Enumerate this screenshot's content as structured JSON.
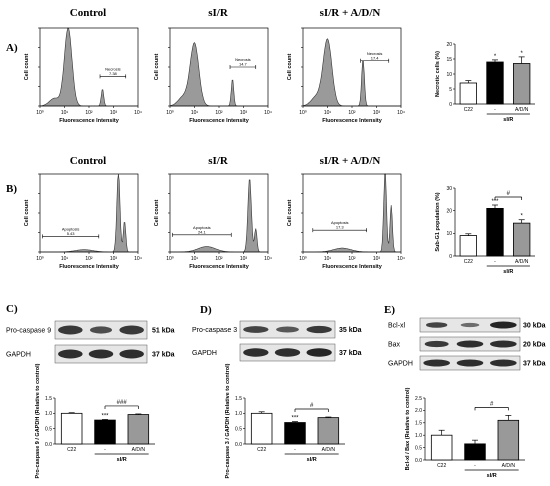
{
  "panels": {
    "A": "A)",
    "B": "B)",
    "C": "C)",
    "D": "D)",
    "E": "E)"
  },
  "column_titles": [
    "Control",
    "sI/R",
    "sI/R + A/D/N"
  ],
  "flow": {
    "ylabel": "Cell count",
    "xlabel": "Fluorescence Intensity",
    "xticks": [
      "10⁰",
      "10¹",
      "10²",
      "10³",
      "10⁴"
    ],
    "A_gate_label": "Necrosis",
    "A_gate_values": [
      "7.38",
      "14.7",
      "17.4"
    ],
    "B_gate_label": "Apoptosis",
    "B_gate_values": [
      "5.43",
      "24.1",
      "17.3"
    ]
  },
  "blots": {
    "C": {
      "rows": [
        {
          "label": "Pro-caspase 9",
          "kda": "51 kDa"
        },
        {
          "label": "GAPDH",
          "kda": "37 kDa"
        }
      ]
    },
    "D": {
      "rows": [
        {
          "label": "Pro-caspase 3",
          "kda": "35 kDa"
        },
        {
          "label": "GAPDH",
          "kda": "37 kDa"
        }
      ]
    },
    "E": {
      "rows": [
        {
          "label": "Bcl-xl",
          "kda": "30 kDa"
        },
        {
          "label": "Bax",
          "kda": "20 kDa"
        },
        {
          "label": "GAPDH",
          "kda": "37 kDa"
        }
      ]
    }
  },
  "chart_data": [
    {
      "id": "A",
      "type": "bar",
      "categories": [
        "C22",
        "-",
        "A/D/N"
      ],
      "group_label": "sI/R",
      "values": [
        7,
        14,
        13.5
      ],
      "errors": [
        0.8,
        0.7,
        2.2
      ],
      "ylabel": "Necrotic cells (%)",
      "ylim": [
        0,
        20
      ],
      "yticks": [
        0,
        5,
        10,
        15,
        20
      ],
      "stars": [
        "",
        "*",
        "*"
      ],
      "bracket": null
    },
    {
      "id": "B",
      "type": "bar",
      "categories": [
        "C22",
        "-",
        "A/D/N"
      ],
      "group_label": "sI/R",
      "values": [
        9,
        21,
        14.5
      ],
      "errors": [
        0.8,
        1.5,
        1.5
      ],
      "ylabel": "Sub-G1 population (%)",
      "ylim": [
        0,
        30
      ],
      "yticks": [
        0,
        10,
        20,
        30
      ],
      "stars": [
        "",
        "***",
        "*"
      ],
      "bracket": "#"
    },
    {
      "id": "C",
      "type": "bar",
      "categories": [
        "C22",
        "-",
        "A/D/N"
      ],
      "group_label": "sI/R",
      "values": [
        1.0,
        0.78,
        0.96
      ],
      "errors": [
        0.02,
        0.02,
        0.02
      ],
      "ylabel": "Pro-caspase 9 / GAPDH (Relative to control)",
      "ylim": [
        0,
        1.5
      ],
      "yticks": [
        0,
        0.5,
        1.0,
        1.5
      ],
      "ytick_labels": [
        "0.0",
        "0.5",
        "1.0",
        "1.5"
      ],
      "stars": [
        "",
        "***",
        ""
      ],
      "bracket": "###"
    },
    {
      "id": "D",
      "type": "bar",
      "categories": [
        "C22",
        "-",
        "A/D/N"
      ],
      "group_label": "sI/R",
      "values": [
        1.0,
        0.7,
        0.86
      ],
      "errors": [
        0.05,
        0.03,
        0.02
      ],
      "ylabel": "Pro-caspase 3 / GAPDH (Relative to control)",
      "ylim": [
        0,
        1.5
      ],
      "yticks": [
        0,
        0.5,
        1.0,
        1.5
      ],
      "ytick_labels": [
        "0.0",
        "0.5",
        "1.0",
        "1.5"
      ],
      "stars": [
        "",
        "***",
        ""
      ],
      "bracket": "#"
    },
    {
      "id": "E",
      "type": "bar",
      "categories": [
        "C22",
        "-",
        "A/D/N"
      ],
      "group_label": "sI/R",
      "values": [
        1.0,
        0.65,
        1.6
      ],
      "errors": [
        0.2,
        0.15,
        0.2
      ],
      "ylabel": "Bcl-xl / Bax (Relative to control)",
      "ylim": [
        0,
        2.5
      ],
      "yticks": [
        0,
        0.5,
        1.0,
        1.5,
        2.0,
        2.5
      ],
      "ytick_labels": [
        "0.0",
        "0.5",
        "1.0",
        "1.5",
        "2.0",
        "2.5"
      ],
      "stars": [
        "",
        "",
        ""
      ],
      "bracket": "#"
    }
  ]
}
